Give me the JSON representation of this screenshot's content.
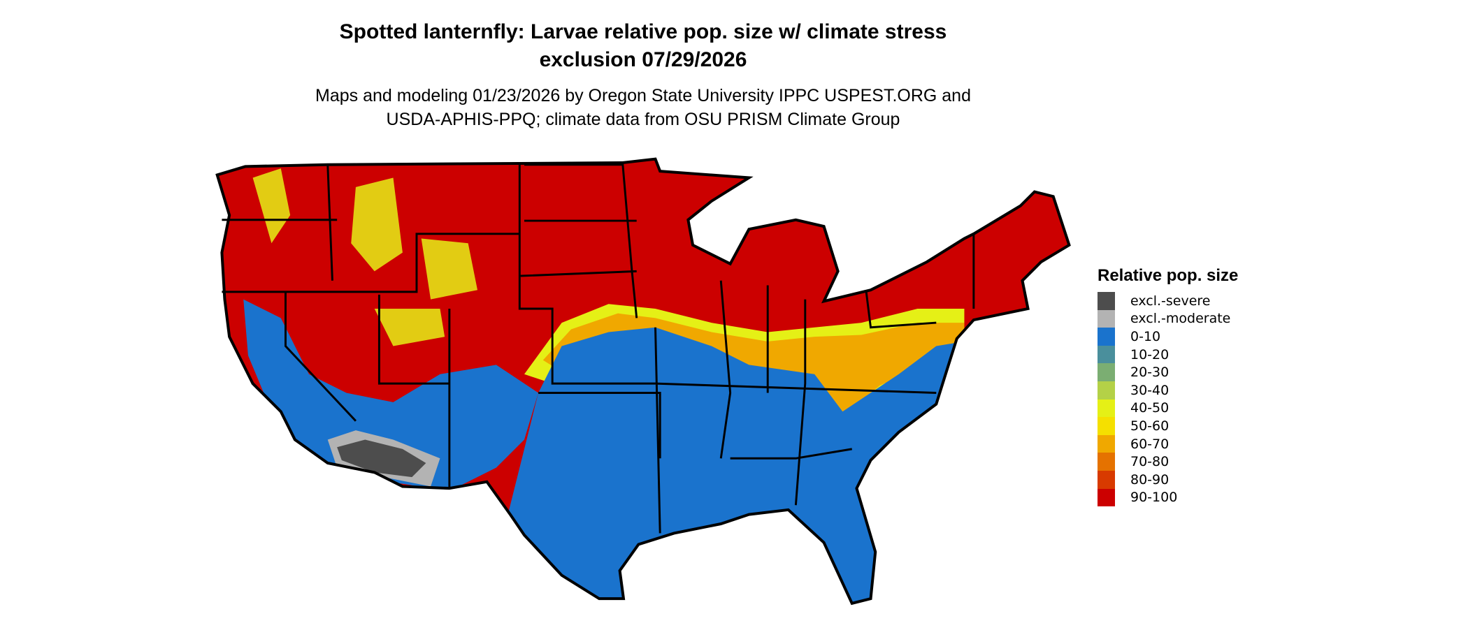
{
  "title": {
    "line1": "Spotted lanternfly: Larvae relative pop. size w/ climate stress",
    "line2": "exclusion 07/29/2026"
  },
  "subtitle": {
    "line1": "Maps and modeling 01/23/2026 by Oregon State University IPPC USPEST.ORG and",
    "line2": "USDA-APHIS-PPQ; climate data from OSU PRISM Climate Group"
  },
  "legend": {
    "title": "Relative pop. size",
    "items": [
      {
        "label": "excl.-severe",
        "color": "#4d4d4d"
      },
      {
        "label": "excl.-moderate",
        "color": "#b3b3b3"
      },
      {
        "label": "0-10",
        "color": "#1a73cd"
      },
      {
        "label": "10-20",
        "color": "#4a8f9c"
      },
      {
        "label": "20-30",
        "color": "#7bae72"
      },
      {
        "label": "30-40",
        "color": "#b4d147"
      },
      {
        "label": "40-50",
        "color": "#e5f016"
      },
      {
        "label": "50-60",
        "color": "#f5e000"
      },
      {
        "label": "60-70",
        "color": "#f0a800"
      },
      {
        "label": "70-80",
        "color": "#e57200"
      },
      {
        "label": "80-90",
        "color": "#d83a00"
      },
      {
        "label": "90-100",
        "color": "#cc0000"
      }
    ]
  }
}
